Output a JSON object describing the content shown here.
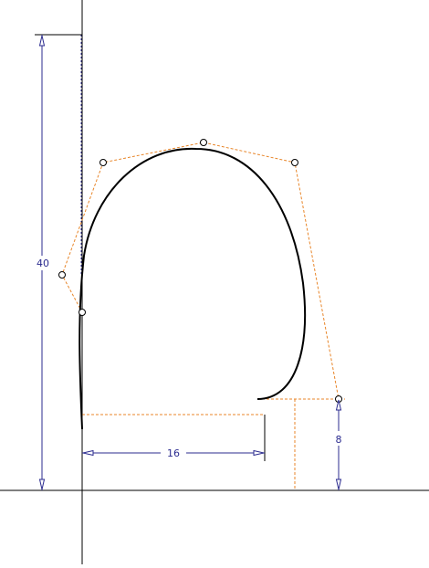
{
  "sketch": {
    "dimensions": {
      "height": "40",
      "width": "16",
      "lip_height": "8"
    },
    "colors": {
      "axis": "#000000",
      "curve": "#000000",
      "control_polygon": "#e8862a",
      "dimension": "#2b2b8f",
      "construction": "#e8862a"
    }
  }
}
